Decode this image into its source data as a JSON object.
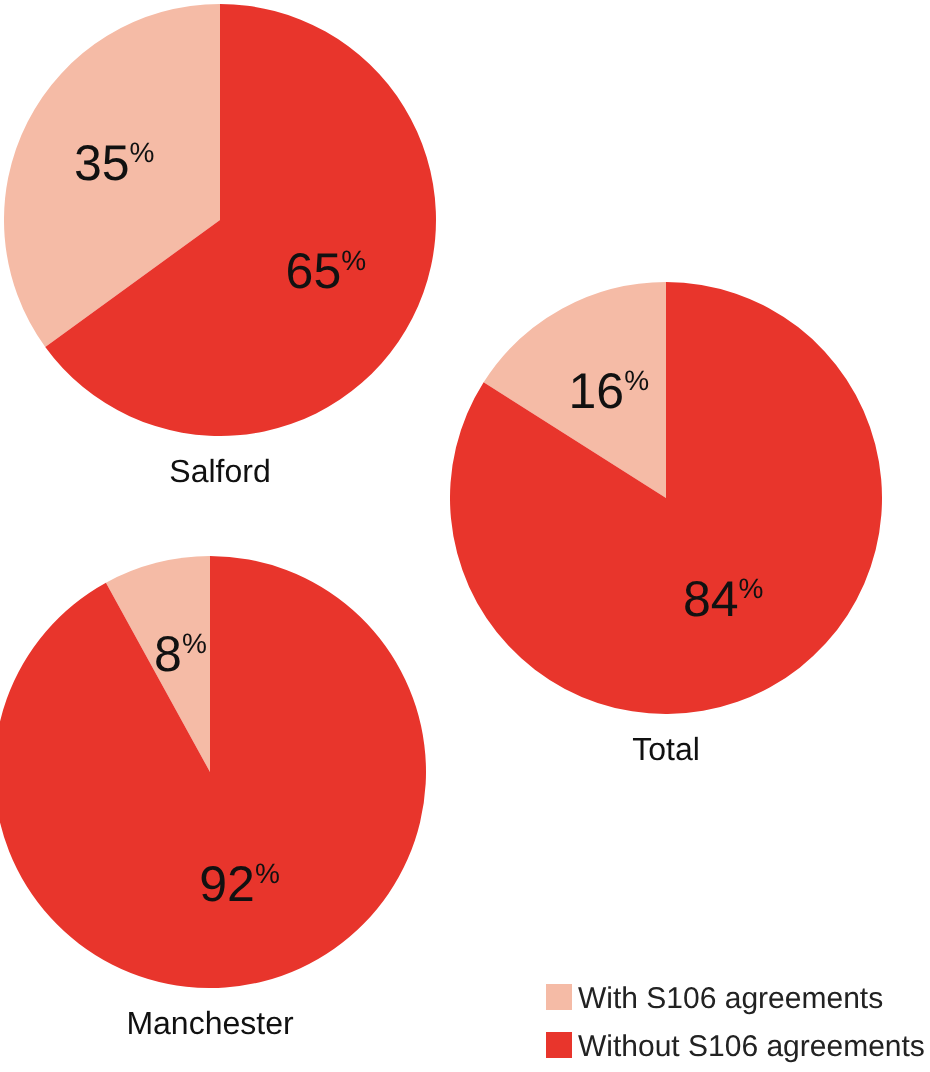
{
  "chart_data": [
    {
      "type": "pie",
      "title": "Salford",
      "categories": [
        "With S106 agreements",
        "Without S106 agreements"
      ],
      "values": [
        35,
        65
      ],
      "colors": [
        "#f5bba6",
        "#e8352c"
      ],
      "value_labels": [
        "35%",
        "65%"
      ],
      "legend": "bottom right"
    },
    {
      "type": "pie",
      "title": "Total",
      "categories": [
        null,
        null
      ],
      "values": [
        16,
        84
      ],
      "colors": [
        "#f5bba6",
        "#e8352c"
      ],
      "value_labels": [
        "16%",
        "84%"
      ]
    },
    {
      "type": "pie",
      "title": "Manchester",
      "categories": [
        null,
        null
      ],
      "values": [
        8,
        92
      ],
      "colors": [
        "#f5bba6",
        "#e8352c"
      ],
      "value_labels": [
        "8%",
        "92%"
      ]
    }
  ]
}
